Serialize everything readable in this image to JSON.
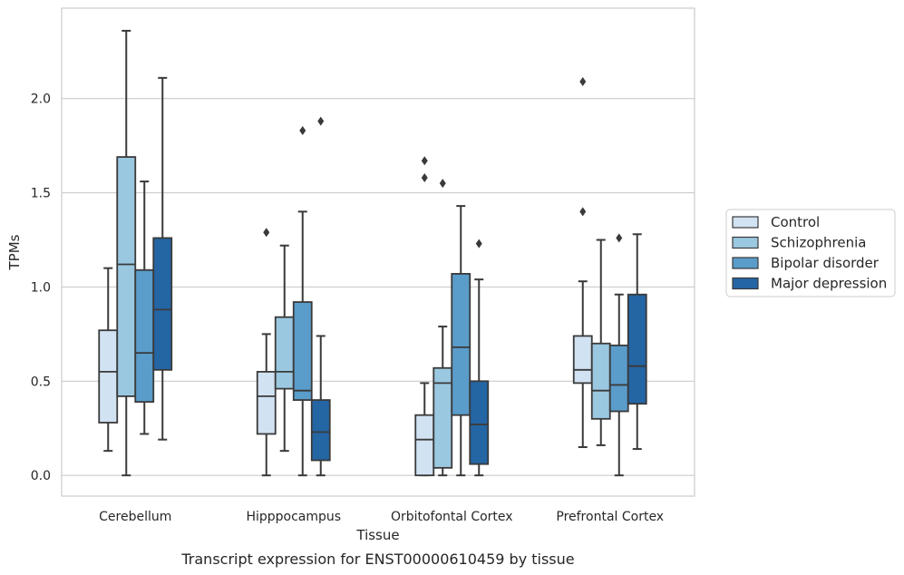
{
  "chart_data": {
    "type": "box",
    "title": "",
    "caption": "Transcript expression for ENST00000610459 by tissue",
    "xlabel": "Tissue",
    "ylabel": "TPMs",
    "ylim": [
      -0.11,
      2.48
    ],
    "yticks": [
      0.0,
      0.5,
      1.0,
      1.5,
      2.0
    ],
    "ytick_labels": [
      "0.0",
      "0.5",
      "1.0",
      "1.5",
      "2.0"
    ],
    "grid": "horizontal",
    "legend_position": "right",
    "categories": [
      "Cerebellum",
      "Hipppocampus",
      "Orbitofontal Cortex",
      "Prefrontal Cortex"
    ],
    "series": [
      {
        "name": "Control",
        "color": "#d1e2f2",
        "boxes": [
          {
            "whisker_low": 0.13,
            "q1": 0.28,
            "median": 0.55,
            "q3": 0.77,
            "whisker_high": 1.1,
            "outliers": []
          },
          {
            "whisker_low": 0.0,
            "q1": 0.22,
            "median": 0.42,
            "q3": 0.55,
            "whisker_high": 0.75,
            "outliers": [
              1.29
            ]
          },
          {
            "whisker_low": 0.0,
            "q1": 0.0,
            "median": 0.19,
            "q3": 0.32,
            "whisker_high": 0.49,
            "outliers": [
              1.58,
              1.67
            ]
          },
          {
            "whisker_low": 0.15,
            "q1": 0.49,
            "median": 0.56,
            "q3": 0.74,
            "whisker_high": 1.03,
            "outliers": [
              1.4,
              2.09
            ]
          }
        ]
      },
      {
        "name": "Schizophrenia",
        "color": "#9ac8e0",
        "boxes": [
          {
            "whisker_low": 0.0,
            "q1": 0.42,
            "median": 1.12,
            "q3": 1.69,
            "whisker_high": 2.36,
            "outliers": []
          },
          {
            "whisker_low": 0.13,
            "q1": 0.46,
            "median": 0.55,
            "q3": 0.84,
            "whisker_high": 1.22,
            "outliers": []
          },
          {
            "whisker_low": 0.0,
            "q1": 0.04,
            "median": 0.49,
            "q3": 0.57,
            "whisker_high": 0.79,
            "outliers": [
              1.55
            ]
          },
          {
            "whisker_low": 0.16,
            "q1": 0.3,
            "median": 0.45,
            "q3": 0.7,
            "whisker_high": 1.25,
            "outliers": []
          }
        ]
      },
      {
        "name": "Bipolar disorder",
        "color": "#5a9cca",
        "boxes": [
          {
            "whisker_low": 0.22,
            "q1": 0.39,
            "median": 0.65,
            "q3": 1.09,
            "whisker_high": 1.56,
            "outliers": []
          },
          {
            "whisker_low": 0.0,
            "q1": 0.4,
            "median": 0.45,
            "q3": 0.92,
            "whisker_high": 1.4,
            "outliers": [
              1.83
            ]
          },
          {
            "whisker_low": 0.0,
            "q1": 0.32,
            "median": 0.68,
            "q3": 1.07,
            "whisker_high": 1.43,
            "outliers": []
          },
          {
            "whisker_low": 0.0,
            "q1": 0.34,
            "median": 0.48,
            "q3": 0.69,
            "whisker_high": 0.96,
            "outliers": [
              1.26
            ]
          }
        ]
      },
      {
        "name": "Major depression",
        "color": "#2465a4",
        "boxes": [
          {
            "whisker_low": 0.19,
            "q1": 0.56,
            "median": 0.88,
            "q3": 1.26,
            "whisker_high": 2.11,
            "outliers": []
          },
          {
            "whisker_low": 0.0,
            "q1": 0.08,
            "median": 0.23,
            "q3": 0.4,
            "whisker_high": 0.74,
            "outliers": [
              1.88
            ]
          },
          {
            "whisker_low": 0.0,
            "q1": 0.06,
            "median": 0.27,
            "q3": 0.5,
            "whisker_high": 1.04,
            "outliers": [
              1.23
            ]
          },
          {
            "whisker_low": 0.14,
            "q1": 0.38,
            "median": 0.58,
            "q3": 0.96,
            "whisker_high": 1.28,
            "outliers": []
          }
        ]
      }
    ],
    "style": {
      "line_color": "#3a3a3a",
      "grid_color": "#cccccc",
      "frame_color": "#cccccc"
    }
  }
}
